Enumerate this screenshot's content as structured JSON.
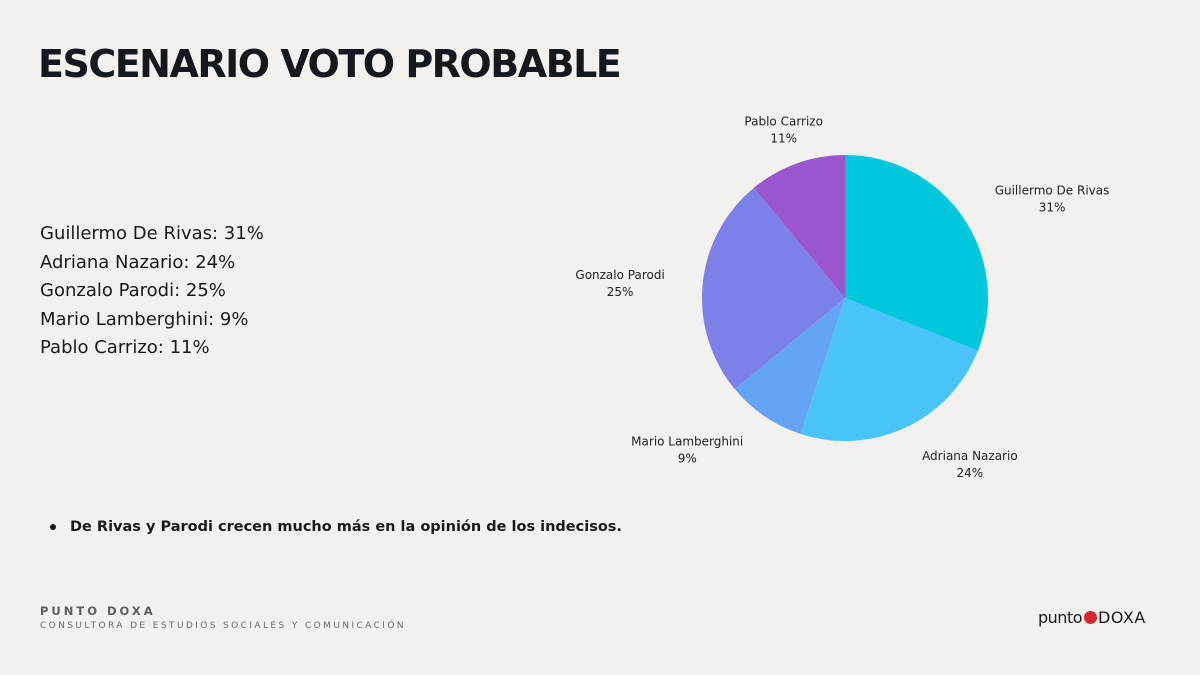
{
  "slide": {
    "title": "ESCENARIO VOTO PROBABLE",
    "results": [
      "Guillermo De Rivas: 31%",
      "Adriana Nazario: 24%",
      "Gonzalo Parodi: 25%",
      "Mario Lamberghini: 9%",
      "Pablo Carrizo: 11%"
    ],
    "bullet": "De Rivas y Parodi crecen mucho más en la opinión de los indecisos."
  },
  "footer": {
    "brand": "PUNTO DOXA",
    "subtitle": "CONSULTORA DE ESTUDIOS SOCIALES Y COMUNICACIÓN",
    "logo_left": "punto",
    "logo_right": "DOXA",
    "logo_dot_color": "#d7262d"
  },
  "chart_data": {
    "type": "pie",
    "title": "",
    "start": "top",
    "direction": "clockwise",
    "slices": [
      {
        "label": "Guillermo De Rivas",
        "value": 31,
        "value_label": "31%",
        "color": "#00c8dc"
      },
      {
        "label": "Adriana Nazario",
        "value": 24,
        "value_label": "24%",
        "color": "#4ac2fa"
      },
      {
        "label": "Mario Lamberghini",
        "value": 9,
        "value_label": "9%",
        "color": "#64a4f4"
      },
      {
        "label": "Gonzalo Parodi",
        "value": 25,
        "value_label": "25%",
        "color": "#7b81e8"
      },
      {
        "label": "Pablo Carrizo",
        "value": 11,
        "value_label": "11%",
        "color": "#9a56ce"
      }
    ]
  }
}
